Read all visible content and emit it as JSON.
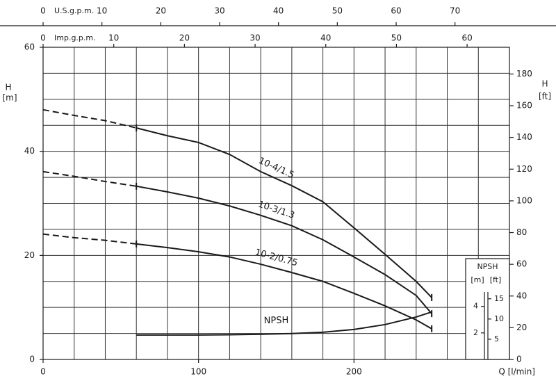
{
  "chart_data": {
    "type": "line",
    "x": [
      0,
      20,
      40,
      60,
      80,
      100,
      120,
      140,
      160,
      180,
      200,
      220,
      240,
      250
    ],
    "xlabel": "Q [l/min]",
    "xlim": [
      0,
      300
    ],
    "xticks": [
      0,
      100,
      200
    ],
    "x_grid": [
      0,
      20,
      40,
      60,
      80,
      100,
      120,
      140,
      160,
      180,
      200,
      220,
      240,
      260,
      280,
      300
    ],
    "ylabel": "H",
    "yunit": "[m]",
    "ylim": [
      0,
      60
    ],
    "yticks": [
      0,
      20,
      40,
      60
    ],
    "y_grid": [
      0,
      5,
      10,
      15,
      20,
      25,
      30,
      35,
      40,
      45,
      50,
      55,
      60
    ],
    "y2label": "H",
    "y2unit": "[ft]",
    "y2lim": [
      0,
      196.85
    ],
    "y2ticks": [
      0,
      20,
      40,
      60,
      80,
      100,
      120,
      140,
      160,
      180
    ],
    "top_axes": [
      {
        "label": "U.S.g.p.m.",
        "lim": [
          0,
          79.25
        ],
        "ticks": [
          0,
          10,
          20,
          30,
          40,
          50,
          60,
          70
        ]
      },
      {
        "label": "Imp.g.p.m.",
        "lim": [
          0,
          65.99
        ],
        "ticks": [
          0,
          10,
          20,
          30,
          40,
          50,
          60
        ]
      }
    ],
    "npsh_axis": {
      "title": "NPSH",
      "m_label": "[m]",
      "ft_label": "[ft]",
      "ylim": [
        0,
        7.6
      ],
      "yticks": [
        2,
        4
      ],
      "y2lim": [
        0,
        24.93
      ],
      "y2ticks": [
        5,
        10,
        15
      ]
    },
    "series": [
      {
        "name": "10-4/1.5",
        "color": "#1a1a1a",
        "values": [
          null,
          null,
          null,
          44.5,
          43.0,
          41.7,
          39.4,
          36.1,
          33.4,
          30.3,
          25.3,
          20.2,
          15.0,
          11.9
        ],
        "extrapolated_values": [
          48.0,
          46.9,
          45.9,
          44.5,
          null,
          null,
          null,
          null,
          null,
          null,
          null,
          null,
          null,
          null
        ]
      },
      {
        "name": "10-3/1.3",
        "color": "#1a1a1a",
        "values": [
          null,
          null,
          null,
          33.3,
          32.2,
          31.0,
          29.5,
          27.7,
          25.7,
          23.0,
          19.7,
          16.3,
          12.3,
          8.8
        ],
        "extrapolated_values": [
          36.1,
          35.2,
          34.2,
          33.3,
          null,
          null,
          null,
          null,
          null,
          null,
          null,
          null,
          null,
          null
        ]
      },
      {
        "name": "10-2/0.75",
        "color": "#1a1a1a",
        "values": [
          null,
          null,
          null,
          22.2,
          21.5,
          20.7,
          19.7,
          18.3,
          16.7,
          15.0,
          12.7,
          10.3,
          7.6,
          5.9
        ],
        "extrapolated_values": [
          24.1,
          23.4,
          22.9,
          22.2,
          null,
          null,
          null,
          null,
          null,
          null,
          null,
          null,
          null,
          null
        ]
      },
      {
        "name": "NPSH",
        "color": "#1a1a1a",
        "axis": "npsh",
        "values": [
          null,
          null,
          null,
          1.84,
          1.84,
          1.84,
          1.86,
          1.9,
          1.95,
          2.05,
          2.26,
          2.63,
          3.2,
          3.58
        ]
      }
    ]
  }
}
